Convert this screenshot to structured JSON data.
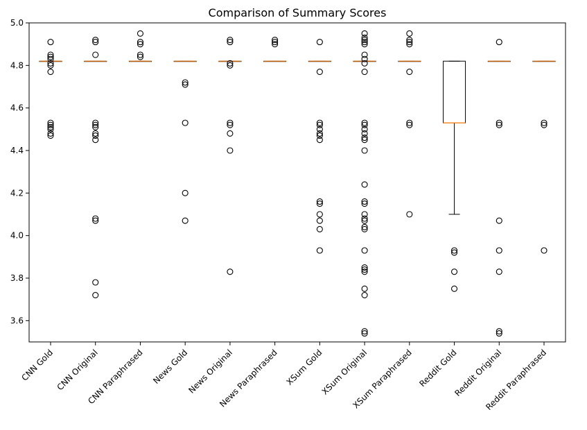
{
  "chart_data": {
    "type": "box",
    "title": "Comparison of Summary Scores",
    "xlabel": "",
    "ylabel": "",
    "ylim": [
      3.5,
      5.0
    ],
    "yticks": [
      3.6,
      3.8,
      4.0,
      4.2,
      4.4,
      4.6,
      4.8,
      5.0
    ],
    "ytick_labels": [
      "3.6",
      "3.8",
      "4.0",
      "4.2",
      "4.4",
      "4.6",
      "4.8",
      "5.0"
    ],
    "grid": false,
    "legend": "none",
    "colors": {
      "box": "#000000",
      "median": "#ff7f0e",
      "flier": "#000000"
    },
    "categories": [
      "CNN Gold",
      "CNN Original",
      "CNN Paraphrased",
      "News Gold",
      "News Original",
      "News Paraphrased",
      "XSum Gold",
      "XSum Original",
      "XSum Paraphrased",
      "Reddit Gold",
      "Reddit Original",
      "Reddit Paraphrased"
    ],
    "boxes": [
      {
        "q1": 4.82,
        "median": 4.82,
        "q3": 4.82,
        "whisker_low": 4.82,
        "whisker_high": 4.82,
        "fliers": [
          4.91,
          4.85,
          4.84,
          4.83,
          4.81,
          4.8,
          4.77,
          4.53,
          4.52,
          4.51,
          4.5,
          4.48,
          4.47
        ]
      },
      {
        "q1": 4.82,
        "median": 4.82,
        "q3": 4.82,
        "whisker_low": 4.82,
        "whisker_high": 4.82,
        "fliers": [
          4.92,
          4.91,
          4.85,
          4.53,
          4.52,
          4.51,
          4.48,
          4.47,
          4.45,
          4.08,
          4.07,
          3.78,
          3.72
        ]
      },
      {
        "q1": 4.82,
        "median": 4.82,
        "q3": 4.82,
        "whisker_low": 4.82,
        "whisker_high": 4.82,
        "fliers": [
          4.95,
          4.91,
          4.9,
          4.85,
          4.84
        ]
      },
      {
        "q1": 4.82,
        "median": 4.82,
        "q3": 4.82,
        "whisker_low": 4.82,
        "whisker_high": 4.82,
        "fliers": [
          4.72,
          4.71,
          4.53,
          4.2,
          4.07
        ]
      },
      {
        "q1": 4.82,
        "median": 4.82,
        "q3": 4.82,
        "whisker_low": 4.82,
        "whisker_high": 4.82,
        "fliers": [
          4.92,
          4.91,
          4.81,
          4.8,
          4.53,
          4.52,
          4.48,
          4.4,
          3.83
        ]
      },
      {
        "q1": 4.82,
        "median": 4.82,
        "q3": 4.82,
        "whisker_low": 4.82,
        "whisker_high": 4.82,
        "fliers": [
          4.92,
          4.91,
          4.9
        ]
      },
      {
        "q1": 4.82,
        "median": 4.82,
        "q3": 4.82,
        "whisker_low": 4.82,
        "whisker_high": 4.82,
        "fliers": [
          4.91,
          4.77,
          4.53,
          4.52,
          4.5,
          4.48,
          4.47,
          4.45,
          4.16,
          4.15,
          4.1,
          4.07,
          4.03,
          3.93
        ]
      },
      {
        "q1": 4.82,
        "median": 4.82,
        "q3": 4.82,
        "whisker_low": 4.82,
        "whisker_high": 4.82,
        "fliers": [
          4.95,
          4.93,
          4.92,
          4.91,
          4.9,
          4.85,
          4.83,
          4.81,
          4.77,
          4.53,
          4.52,
          4.5,
          4.48,
          4.46,
          4.45,
          4.4,
          4.24,
          4.16,
          4.15,
          4.1,
          4.08,
          4.07,
          4.04,
          4.03,
          3.93,
          3.85,
          3.84,
          3.83,
          3.75,
          3.72,
          3.55,
          3.54
        ]
      },
      {
        "q1": 4.82,
        "median": 4.82,
        "q3": 4.82,
        "whisker_low": 4.82,
        "whisker_high": 4.82,
        "fliers": [
          4.95,
          4.92,
          4.91,
          4.9,
          4.77,
          4.53,
          4.52,
          4.1
        ]
      },
      {
        "q1": 4.53,
        "median": 4.53,
        "q3": 4.82,
        "whisker_low": 4.1,
        "whisker_high": 4.82,
        "fliers": [
          3.93,
          3.92,
          3.83,
          3.75
        ]
      },
      {
        "q1": 4.82,
        "median": 4.82,
        "q3": 4.82,
        "whisker_low": 4.82,
        "whisker_high": 4.82,
        "fliers": [
          4.91,
          4.53,
          4.52,
          4.07,
          3.93,
          3.83,
          3.55,
          3.54
        ]
      },
      {
        "q1": 4.82,
        "median": 4.82,
        "q3": 4.82,
        "whisker_low": 4.82,
        "whisker_high": 4.82,
        "fliers": [
          4.53,
          4.52,
          3.93
        ]
      }
    ]
  }
}
